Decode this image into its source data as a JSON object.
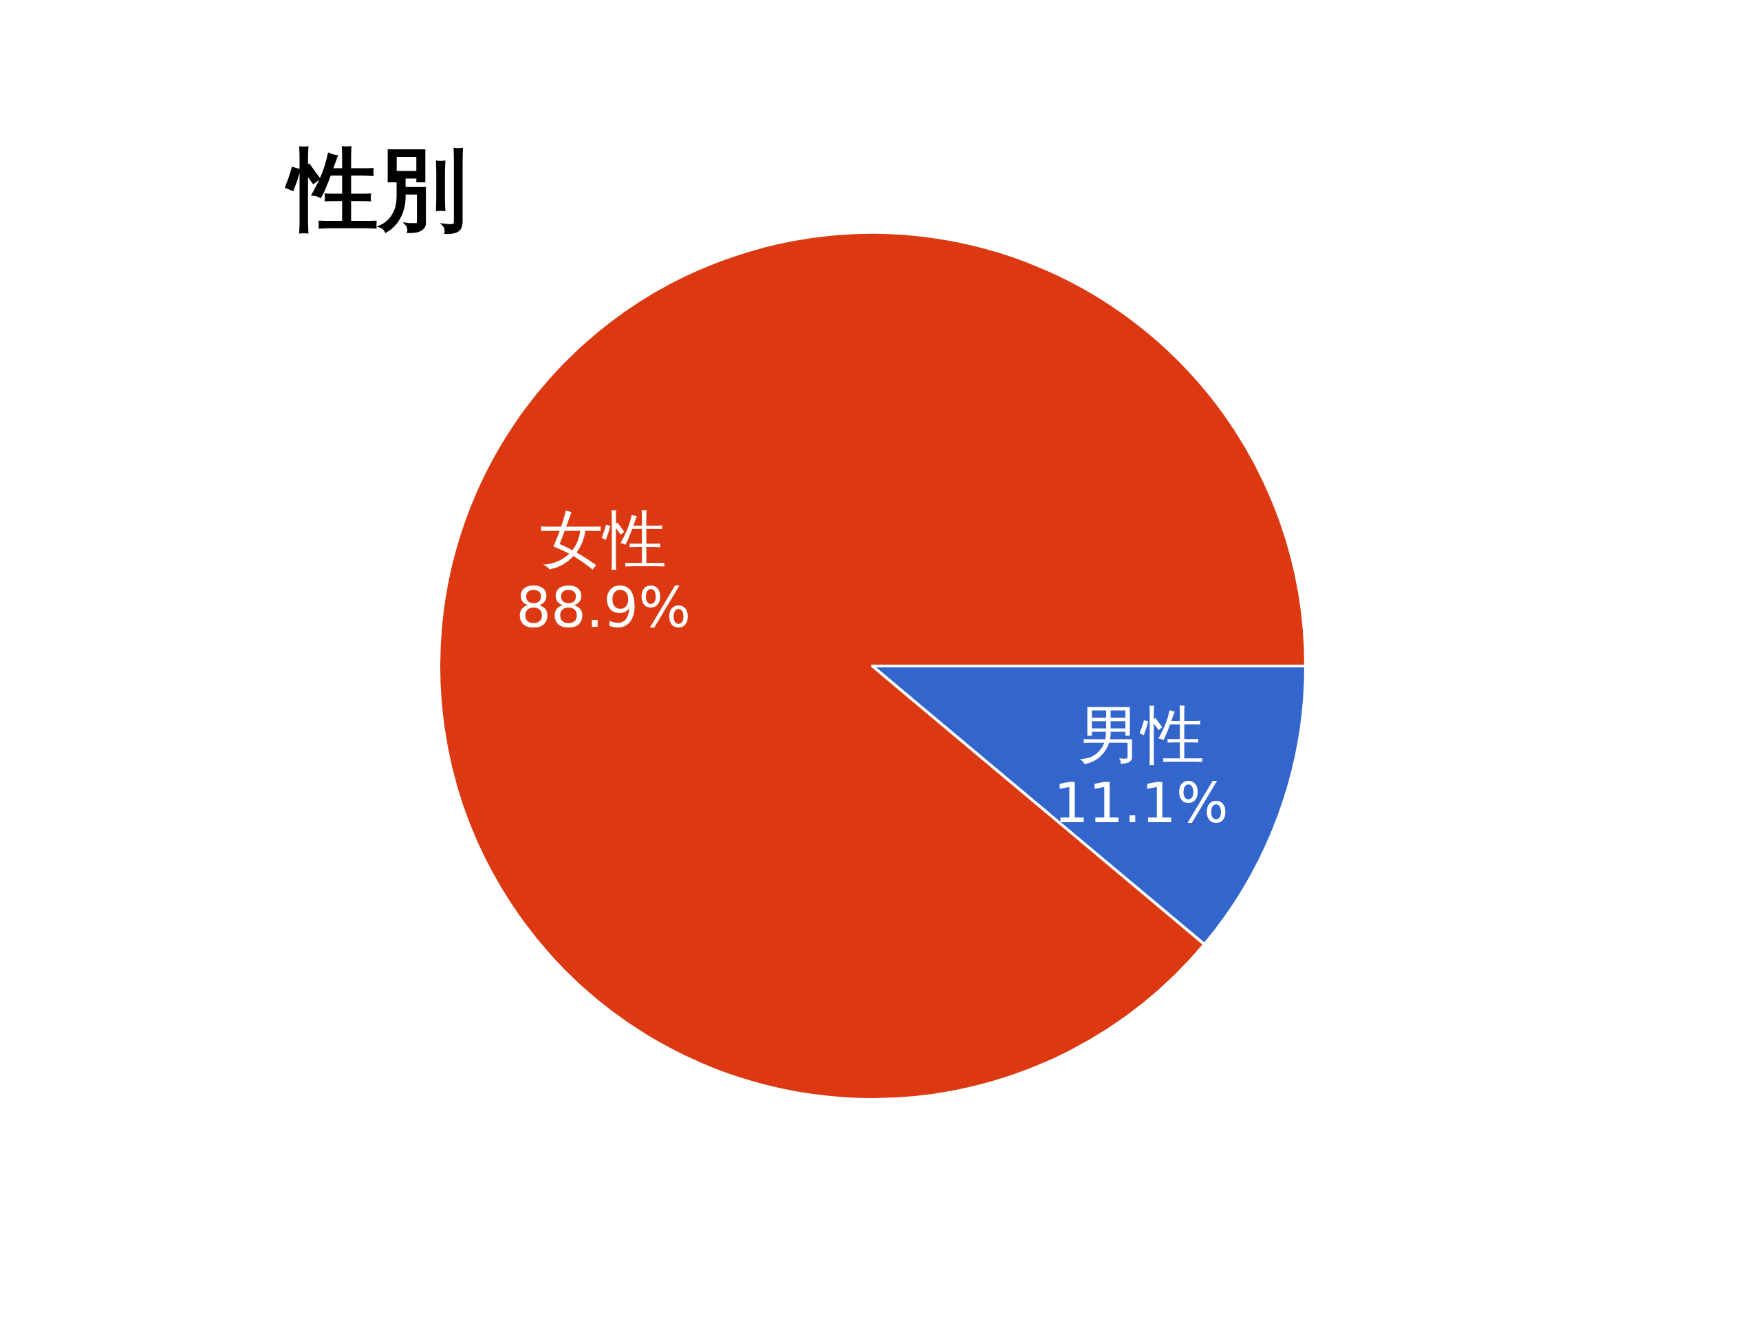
{
  "chart_data": {
    "type": "pie",
    "title": "性別",
    "categories": [
      "男性",
      "女性"
    ],
    "values": [
      11.1,
      88.9
    ],
    "colors": [
      "#3366cc",
      "#dc3912"
    ],
    "value_labels": [
      "11.1%",
      "88.9%"
    ]
  }
}
